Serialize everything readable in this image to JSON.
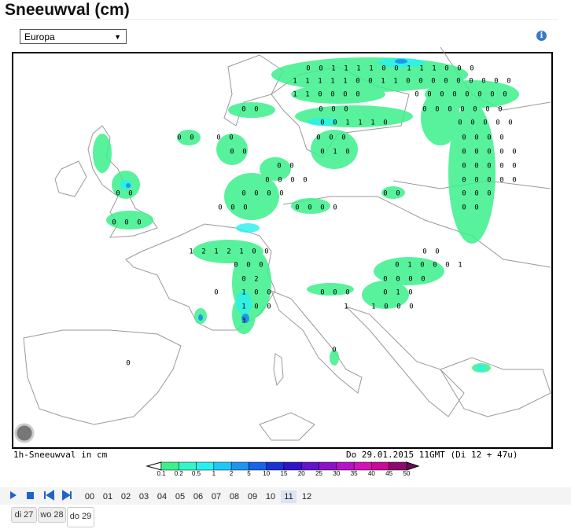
{
  "header": {
    "title": "Sneeuwval (cm)",
    "region": "Europa"
  },
  "map": {
    "caption": "1h-Sneeuwval in cm",
    "timestamp": "Do 29.01.2015 11GMT (Di 12 + 47u)",
    "segments": [
      [
        "0",
        "0",
        "1",
        "1",
        "1",
        "1",
        "0",
        "0",
        "1",
        "1",
        "1",
        "0",
        "0",
        "0"
      ],
      [
        "1",
        "1",
        "1",
        "1",
        "1",
        "0",
        "0",
        "1",
        "1",
        "0",
        "0",
        "0",
        "0",
        "0",
        "0",
        "0",
        "0",
        "0"
      ],
      [
        "1",
        "1",
        "0",
        "0",
        "0",
        "0"
      ],
      [
        "0",
        "0",
        "0",
        "0",
        "0",
        "0",
        "0",
        "0"
      ],
      [
        "0",
        "0"
      ],
      [
        "0",
        "0",
        "0"
      ],
      [
        "0",
        "0",
        "0",
        "0",
        "0",
        "0",
        "0"
      ],
      [
        "0",
        "0",
        "1",
        "1",
        "1",
        "0"
      ],
      [
        "0",
        "0",
        "0",
        "0",
        "0"
      ],
      [
        "0",
        "0"
      ],
      [
        "0",
        "0"
      ],
      [
        "0",
        "0",
        "0"
      ],
      [
        "0",
        "0",
        "0",
        "0"
      ],
      [
        "0",
        "0"
      ],
      [
        "0",
        "1",
        "0"
      ],
      [
        "0",
        "0",
        "0",
        "0",
        "0"
      ],
      [
        "0",
        "0"
      ],
      [
        "0",
        "0",
        "0",
        "0",
        "0"
      ],
      [
        "0",
        "0",
        "0",
        "0"
      ],
      [
        "0",
        "0",
        "0",
        "0",
        "0"
      ],
      [
        "0",
        "0"
      ],
      [
        "0",
        "0",
        "0",
        "0"
      ],
      [
        "0",
        "0"
      ],
      [
        "0",
        "0",
        "0"
      ],
      [
        "0",
        "0",
        "0"
      ],
      [
        "0",
        "0",
        "0",
        "0"
      ],
      [
        "0",
        "0"
      ],
      [
        "0",
        "0",
        "0"
      ],
      [
        "1",
        "2",
        "1",
        "2",
        "1",
        "0",
        "0"
      ],
      [
        "0",
        "0"
      ],
      [
        "0",
        "0",
        "0"
      ],
      [
        "0",
        "1",
        "0",
        "0",
        "0",
        "1"
      ],
      [
        "0",
        "2"
      ],
      [
        "0",
        "0",
        "0",
        "0"
      ],
      [
        "0"
      ],
      [
        "1",
        "0",
        "0"
      ],
      [
        "0",
        "0",
        "0"
      ],
      [
        "0",
        "1",
        "0"
      ],
      [
        "1",
        "0",
        "0"
      ],
      [
        "1"
      ],
      [
        "1",
        "0",
        "0",
        "0"
      ],
      [
        "3"
      ],
      [
        "0"
      ],
      [
        "0"
      ]
    ]
  },
  "legend": {
    "labels": [
      0.1,
      0.2,
      0.5,
      1,
      2,
      5,
      10,
      15,
      20,
      25,
      30,
      35,
      40,
      45,
      50
    ],
    "colors": [
      "#3cf08c",
      "#33f5c8",
      "#28f0f0",
      "#22c8f5",
      "#1e96f0",
      "#1a64e6",
      "#1a32d2",
      "#3214c8",
      "#6414c8",
      "#8c14c8",
      "#b414c8",
      "#d214b4",
      "#c80a96",
      "#8c0a6e"
    ]
  },
  "controls": {
    "hours": [
      "00",
      "01",
      "02",
      "03",
      "04",
      "05",
      "06",
      "07",
      "08",
      "09",
      "10",
      "11",
      "12"
    ],
    "days": [
      "di 27",
      "wo 28",
      "do 29"
    ]
  }
}
